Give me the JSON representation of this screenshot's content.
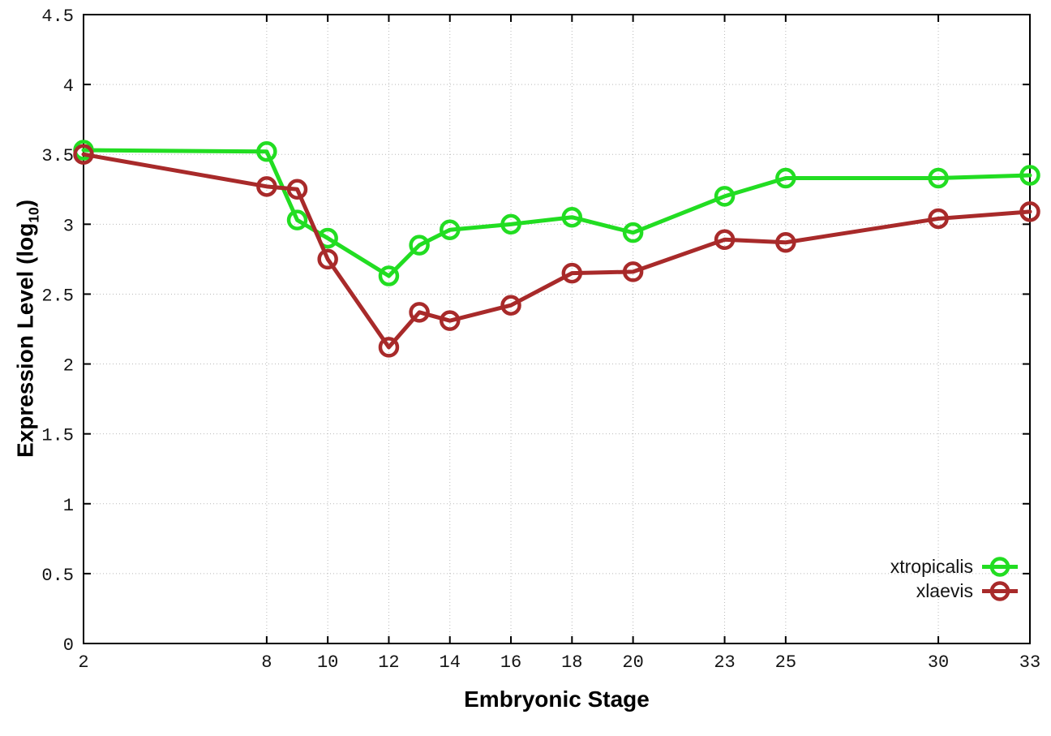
{
  "figure": {
    "background": "#ffffff"
  },
  "ylabel": {
    "pre": "Expression Level (log",
    "sub": "10",
    "post": ")"
  },
  "chart_data": {
    "type": "line",
    "title": "",
    "xlabel": "Embryonic Stage",
    "ylabel": "Expression Level (log10)",
    "xlim": [
      2,
      33
    ],
    "ylim": [
      0,
      4.5
    ],
    "xticks": [
      2,
      8,
      10,
      12,
      14,
      16,
      18,
      20,
      23,
      25,
      30,
      33
    ],
    "xtick_labels": [
      "2",
      "8",
      "10",
      "12",
      "14",
      "16",
      "18",
      "20",
      "23",
      "25",
      "30",
      "33"
    ],
    "yticks": [
      0,
      0.5,
      1,
      1.5,
      2,
      2.5,
      3,
      3.5,
      4,
      4.5
    ],
    "ytick_labels": [
      "0",
      "0.5",
      "1",
      "1.5",
      "2",
      "2.5",
      "3",
      "3.5",
      "4",
      "4.5"
    ],
    "grid": true,
    "grid_style": "dotted",
    "grid_color": "#b9b9b9",
    "axis_color": "#000000",
    "marker": "open-circle",
    "legend_position": "bottom-right",
    "x": [
      2,
      8,
      9,
      10,
      12,
      13,
      14,
      16,
      18,
      20,
      23,
      25,
      30,
      33
    ],
    "series": [
      {
        "name": "xtropicalis",
        "color": "#22dd22",
        "values": [
          3.53,
          3.52,
          3.03,
          2.9,
          2.63,
          2.85,
          2.96,
          3.0,
          3.05,
          2.94,
          3.2,
          3.33,
          3.33,
          3.35
        ]
      },
      {
        "name": "xlaevis",
        "color": "#a82a2a",
        "values": [
          3.5,
          3.27,
          3.25,
          2.75,
          2.12,
          2.37,
          2.31,
          2.42,
          2.65,
          2.66,
          2.89,
          2.87,
          3.04,
          3.09
        ]
      }
    ]
  }
}
